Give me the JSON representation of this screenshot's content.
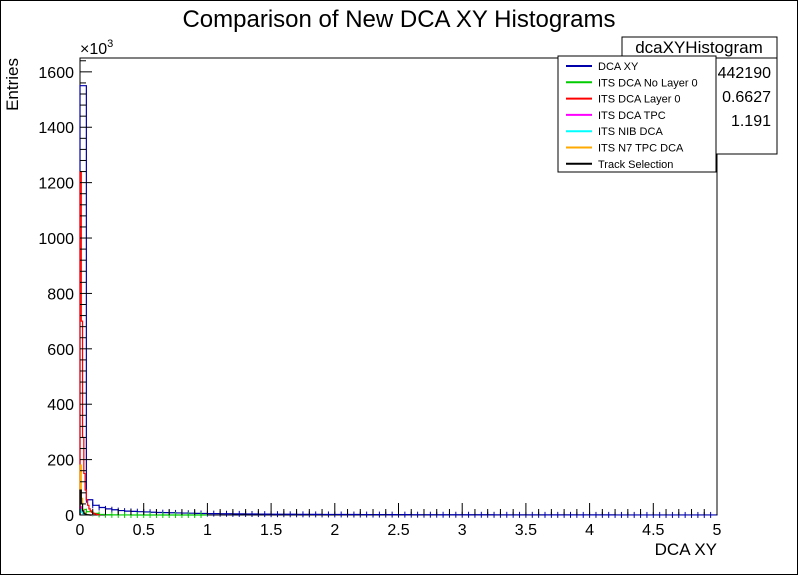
{
  "chart_data": {
    "type": "histogram",
    "title": "Comparison of New DCA XY Histograms",
    "xlabel": "DCA XY",
    "ylabel": "Entries",
    "y_multiplier": "×10",
    "y_multiplier_exp": "3",
    "xlim": [
      0,
      5
    ],
    "ylim": [
      0,
      1650
    ],
    "x_ticks": [
      "0",
      "0.5",
      "1",
      "1.5",
      "2",
      "2.5",
      "3",
      "3.5",
      "4",
      "4.5",
      "5"
    ],
    "y_ticks": [
      "0",
      "200",
      "400",
      "600",
      "800",
      "1000",
      "1200",
      "1400",
      "1600"
    ],
    "stats_box": {
      "title": "dcaXYHistogram",
      "values": [
        "442190",
        "0.6627",
        "1.191"
      ]
    },
    "legend_position": "top-right",
    "colors": {
      "dca_xy": "#0000aa",
      "its_no_layer0": "#00cc00",
      "its_layer0": "#ff0000",
      "its_tpc": "#ff00ff",
      "its_nib": "#00ffff",
      "its_n7_tpc": "#ffaa00",
      "track_selection": "#000000"
    },
    "series": [
      {
        "name": "DCA XY",
        "color_key": "dca_xy",
        "bin_width": 0.05,
        "values": [
          1550,
          55,
          35,
          27,
          22,
          19,
          16,
          14,
          13,
          12,
          11,
          10,
          9,
          8.5,
          8,
          7.5,
          7,
          6.5,
          6,
          5.5,
          5,
          5,
          4.5,
          4.5,
          4,
          4,
          3.8,
          3.6,
          3.4,
          3.2,
          3,
          3,
          2.8,
          2.6,
          2.5,
          2.4,
          2.3,
          2.2,
          2.1,
          2,
          2,
          1.9,
          1.8,
          1.7,
          1.6,
          1.6,
          1.5,
          1.5,
          1.4,
          1.4,
          1.3,
          1.3,
          1.2,
          1.2,
          1.1,
          1.1,
          1,
          1,
          1,
          0.9,
          0.9,
          0.9,
          0.8,
          0.8,
          0.8,
          0.7,
          0.7,
          0.7,
          0.7,
          0.6,
          0.6,
          0.6,
          0.6,
          0.5,
          0.5,
          0.5,
          0.5,
          0.5,
          0.4,
          0.4,
          0.4,
          0.4,
          0.4,
          0.4,
          0.3,
          0.3,
          0.3,
          0.3,
          0.3,
          0.3,
          0.3,
          0.3,
          0.2,
          0.2,
          0.2,
          0.2,
          0.2,
          0.2,
          0.2,
          0.2
        ]
      },
      {
        "name": "ITS DCA No Layer 0",
        "color_key": "its_no_layer0",
        "bin_width": 0.05,
        "values": [
          20,
          12,
          6,
          2,
          1,
          0.5,
          0.3,
          0.2,
          0.1,
          0.1,
          0.1,
          0,
          0,
          0,
          0,
          0,
          0,
          0,
          0,
          0
        ]
      },
      {
        "name": "ITS DCA Layer 0",
        "color_key": "its_layer0",
        "bin_width": 0.01,
        "values": [
          1240,
          700,
          280,
          150,
          90,
          55,
          35,
          22,
          15,
          10,
          7,
          5,
          3,
          2,
          1
        ]
      },
      {
        "name": "ITS DCA TPC",
        "color_key": "its_tpc",
        "bin_width": 0.01,
        "values": [
          30,
          15,
          8,
          4,
          2,
          1,
          0.5,
          0.2,
          0.1,
          0
        ]
      },
      {
        "name": "ITS NIB DCA",
        "color_key": "its_nib",
        "bin_width": 0.01,
        "values": [
          20,
          10,
          5,
          2,
          1,
          0.5,
          0.2,
          0.1,
          0
        ]
      },
      {
        "name": "ITS N7 TPC DCA",
        "color_key": "its_n7_tpc",
        "bin_width": 0.01,
        "values": [
          180,
          60,
          20,
          8,
          3,
          1,
          0.5,
          0.2,
          0
        ]
      },
      {
        "name": "Track Selection",
        "color_key": "track_selection",
        "bin_width": 0.01,
        "values": [
          90,
          40,
          15,
          6,
          2,
          1,
          0.5,
          0.2,
          0
        ]
      }
    ]
  }
}
